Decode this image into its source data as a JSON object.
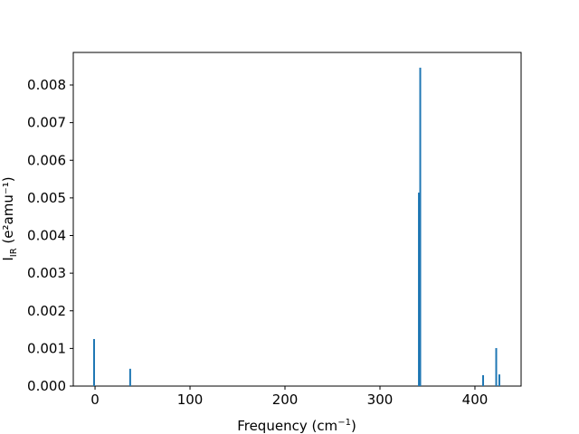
{
  "chart_data": {
    "type": "bar",
    "x_label": {
      "main": "Frequency (cm",
      "sup": "−1",
      "close": ")"
    },
    "y_label": {
      "main": "I",
      "sub": "IR",
      "unit": " (e²amu⁻¹)"
    },
    "x": [
      -1,
      37,
      341,
      342.4,
      408.6,
      422.4,
      425.7
    ],
    "values": [
      0.00125,
      0.00046,
      0.00514,
      0.00846,
      0.00029,
      0.00101,
      0.00031
    ],
    "color": "#1f77b4",
    "xlim": [
      -22.9,
      448.6
    ],
    "ylim": [
      0,
      0.008865
    ],
    "xticks": [
      0,
      100,
      200,
      300,
      400
    ],
    "yticks": [
      {
        "value": 0,
        "label": "0.000"
      },
      {
        "value": 0.001,
        "label": "0.001"
      },
      {
        "value": 0.002,
        "label": "0.002"
      },
      {
        "value": 0.003,
        "label": "0.003"
      },
      {
        "value": 0.004,
        "label": "0.004"
      },
      {
        "value": 0.005,
        "label": "0.005"
      },
      {
        "value": 0.006,
        "label": "0.006"
      },
      {
        "value": 0.007,
        "label": "0.007"
      },
      {
        "value": 0.008,
        "label": "0.008"
      }
    ]
  }
}
